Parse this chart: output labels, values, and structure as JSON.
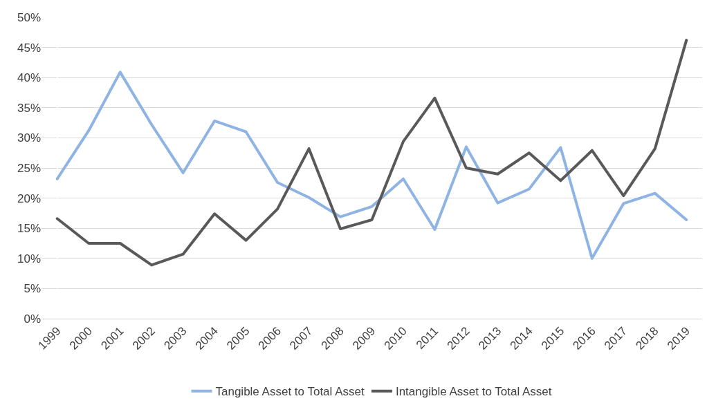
{
  "chart_data": {
    "type": "line",
    "categories": [
      "1999",
      "2000",
      "2001",
      "2002",
      "2003",
      "2004",
      "2005",
      "2006",
      "2007",
      "2008",
      "2009",
      "2010",
      "2011",
      "2012",
      "2013",
      "2014",
      "2015",
      "2016",
      "2017",
      "2018",
      "2019"
    ],
    "series": [
      {
        "name": "Tangible Asset to Total Asset",
        "color": "#8fb4e3",
        "values": [
          23.2,
          31.2,
          40.9,
          32.2,
          24.2,
          32.8,
          31.0,
          22.6,
          20.1,
          16.9,
          18.6,
          23.2,
          14.8,
          28.5,
          19.2,
          21.5,
          28.4,
          10.0,
          19.1,
          20.8,
          16.4
        ]
      },
      {
        "name": "Intangible Asset to Total Asset",
        "color": "#595959",
        "values": [
          16.6,
          12.5,
          12.5,
          8.9,
          10.7,
          17.4,
          13.0,
          18.2,
          28.2,
          14.9,
          16.4,
          29.4,
          36.6,
          25.0,
          24.0,
          27.5,
          22.9,
          27.9,
          20.4,
          28.2,
          46.2
        ]
      }
    ],
    "ylim": [
      0,
      50
    ],
    "yticks": [
      {
        "value": 0,
        "label": "0%"
      },
      {
        "value": 5,
        "label": "5%"
      },
      {
        "value": 10,
        "label": "10%"
      },
      {
        "value": 15,
        "label": "15%"
      },
      {
        "value": 20,
        "label": "20%"
      },
      {
        "value": 25,
        "label": "25%"
      },
      {
        "value": 30,
        "label": "30%"
      },
      {
        "value": 35,
        "label": "35%"
      },
      {
        "value": 40,
        "label": "40%"
      },
      {
        "value": 45,
        "label": "45%"
      },
      {
        "value": 50,
        "label": "50%"
      }
    ],
    "grid": "y",
    "legend": "bottom",
    "marker": "none",
    "line_style": "solid"
  }
}
